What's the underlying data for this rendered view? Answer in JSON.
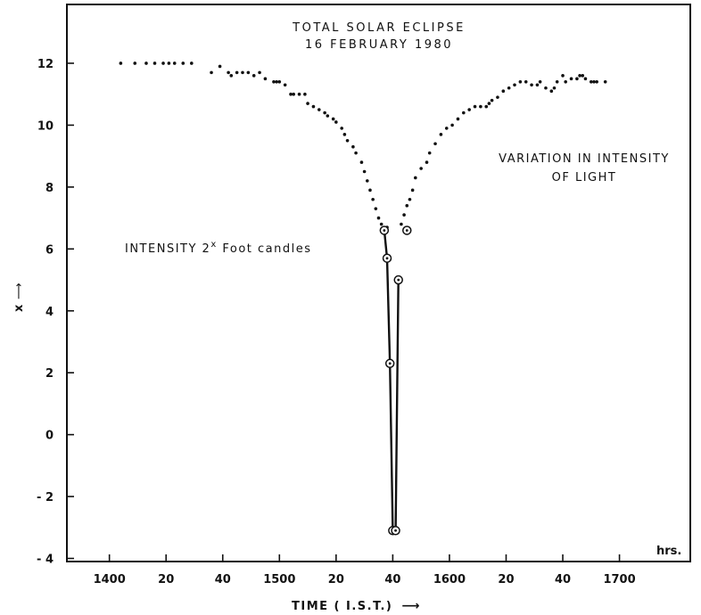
{
  "chart_data": {
    "type": "scatter",
    "title": "TOTAL SOLAR ECLIPSE",
    "subtitle": "16 FEBRUARY 1980",
    "xlabel": "TIME ( I.S.T.)",
    "xlabel_arrow": "⟶",
    "ylabel": "x",
    "ylabel_arrow": "⟶",
    "x_unit_label": "hrs.",
    "annotations": {
      "variation_line1": "VARIATION IN INTENSITY",
      "variation_line2": "OF LIGHT",
      "intensity_prefix": "INTENSITY 2",
      "intensity_exp": "x",
      "intensity_suffix": " Foot candles"
    },
    "x_ticks": [
      {
        "value": 1400,
        "label": "1400"
      },
      {
        "value": 1420,
        "label": "20"
      },
      {
        "value": 1440,
        "label": "40"
      },
      {
        "value": 1500,
        "label": "1500"
      },
      {
        "value": 1520,
        "label": "20"
      },
      {
        "value": 1540,
        "label": "40"
      },
      {
        "value": 1600,
        "label": "1600"
      },
      {
        "value": 1620,
        "label": "20"
      },
      {
        "value": 1640,
        "label": "40"
      },
      {
        "value": 1700,
        "label": "1700"
      }
    ],
    "y_ticks": [
      {
        "value": 12,
        "label": "12"
      },
      {
        "value": 10,
        "label": "10"
      },
      {
        "value": 8,
        "label": "8"
      },
      {
        "value": 6,
        "label": "6"
      },
      {
        "value": 4,
        "label": "4"
      },
      {
        "value": 2,
        "label": "2"
      },
      {
        "value": 0,
        "label": "0"
      },
      {
        "value": -2,
        "label": "- 2"
      },
      {
        "value": -4,
        "label": "- 4"
      }
    ],
    "xlim": [
      1345,
      1725
    ],
    "ylim": [
      -4.1,
      13.9
    ],
    "grid": false,
    "series": [
      {
        "style": "dots",
        "x": [
          1404,
          1409,
          1413,
          1416,
          1419,
          1421,
          1423,
          1426,
          1429,
          1436,
          1439,
          1442,
          1443,
          1445,
          1447,
          1449,
          1451,
          1453,
          1455,
          1458,
          1459,
          1500,
          1502,
          1504,
          1505,
          1507,
          1509,
          1510,
          1512,
          1514,
          1516,
          1517,
          1519,
          1520,
          1522,
          1523,
          1524,
          1526,
          1527,
          1529,
          1530,
          1531,
          1532,
          1533,
          1534,
          1535,
          1536,
          1537,
          1538
        ],
        "y": [
          12.0,
          12.0,
          12.0,
          12.0,
          12.0,
          12.0,
          12.0,
          12.0,
          12.0,
          11.7,
          11.9,
          11.7,
          11.6,
          11.7,
          11.7,
          11.7,
          11.6,
          11.7,
          11.5,
          11.4,
          11.4,
          11.4,
          11.3,
          11.0,
          11.0,
          11.0,
          11.0,
          10.7,
          10.6,
          10.5,
          10.4,
          10.3,
          10.2,
          10.1,
          9.9,
          9.7,
          9.5,
          9.3,
          9.1,
          8.8,
          8.5,
          8.2,
          7.9,
          7.6,
          7.3,
          7.0,
          6.8,
          6.6,
          6.7
        ]
      },
      {
        "style": "dots",
        "x": [
          1543,
          1544,
          1545,
          1546,
          1547,
          1548,
          1550,
          1552,
          1553,
          1555,
          1557,
          1559,
          1601,
          1603,
          1605,
          1607,
          1609,
          1611,
          1613,
          1614,
          1615,
          1617,
          1619,
          1621,
          1623,
          1625,
          1627,
          1629,
          1631,
          1632,
          1634,
          1636,
          1637,
          1638,
          1640,
          1641,
          1643,
          1645,
          1646,
          1647,
          1648,
          1650,
          1651,
          1652,
          1655
        ],
        "y": [
          6.8,
          7.1,
          7.4,
          7.6,
          7.9,
          8.3,
          8.6,
          8.8,
          9.1,
          9.4,
          9.7,
          9.9,
          10.0,
          10.2,
          10.4,
          10.5,
          10.6,
          10.6,
          10.6,
          10.7,
          10.8,
          10.9,
          11.1,
          11.2,
          11.3,
          11.4,
          11.4,
          11.3,
          11.3,
          11.4,
          11.2,
          11.1,
          11.2,
          11.4,
          11.6,
          11.4,
          11.5,
          11.5,
          11.6,
          11.6,
          11.5,
          11.4,
          11.4,
          11.4,
          11.4
        ]
      },
      {
        "style": "circled-line",
        "x": [
          1537,
          1538,
          1539,
          1540,
          1541,
          1542
        ],
        "y": [
          6.6,
          5.7,
          2.3,
          -3.1,
          -3.1,
          5.0
        ]
      },
      {
        "style": "circled",
        "x": [
          1545
        ],
        "y": [
          6.6
        ]
      }
    ]
  }
}
